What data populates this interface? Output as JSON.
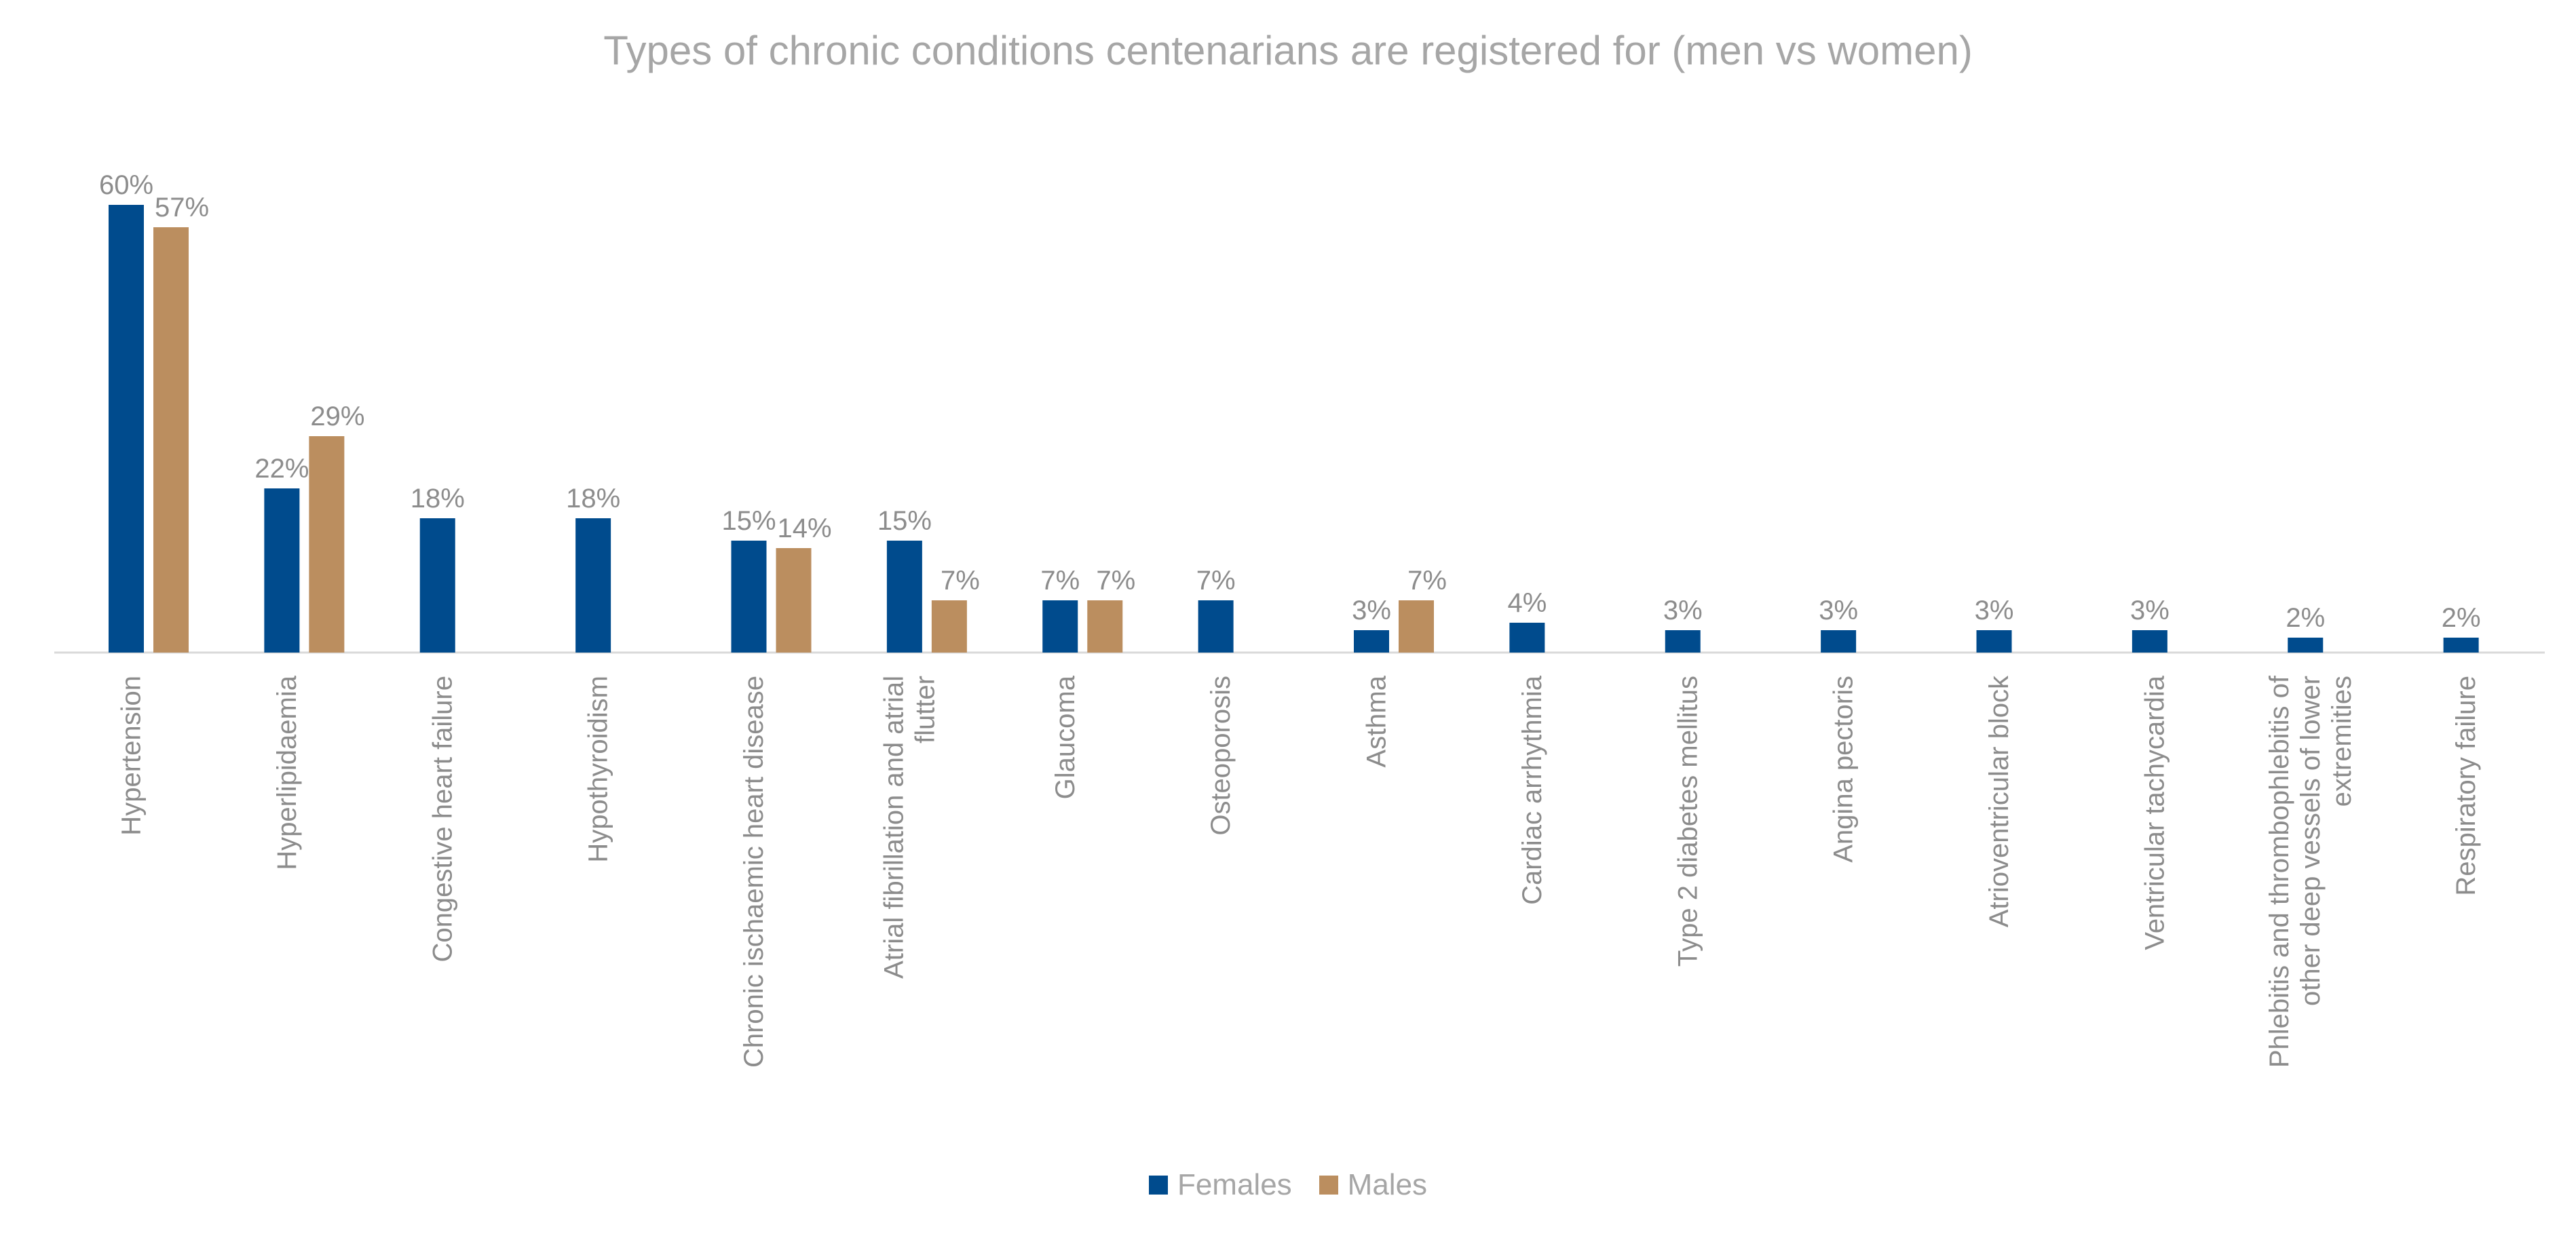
{
  "chart_data": {
    "type": "bar",
    "title": "Types of chronic conditions centenarians are registered for (men vs women)",
    "xlabel": "",
    "ylabel": "",
    "ylim": [
      0,
      65
    ],
    "grid": false,
    "legend_position": "bottom",
    "categories": [
      "Hypertension",
      "Hyperlipidaemia",
      "Congestive heart failure",
      "Hypothyroidism",
      "Chronic ischaemic heart disease",
      "Atrial fibrillation and atrial flutter",
      "Glaucoma",
      "Osteoporosis",
      "Asthma",
      "Cardiac arrhythmia",
      "Type 2 diabetes mellitus",
      "Angina pectoris",
      "Atrioventricular block",
      "Ventricular tachycardia",
      "Phlebitis and thrombophlebitis of other deep vessels of lower extremities",
      "Respiratory failure"
    ],
    "series": [
      {
        "name": "Females",
        "color": "#004b8d",
        "values": [
          60,
          22,
          18,
          18,
          15,
          15,
          7,
          7,
          3,
          4,
          3,
          3,
          3,
          3,
          2,
          2
        ],
        "labels": [
          "60%",
          "22%",
          "18%",
          "18%",
          "15%",
          "15%",
          "7%",
          "7%",
          "3%",
          "4%",
          "3%",
          "3%",
          "3%",
          "3%",
          "2%",
          "2%"
        ]
      },
      {
        "name": "Males",
        "color": "#bb8e5f",
        "values": [
          57,
          29,
          null,
          null,
          14,
          7,
          7,
          null,
          7,
          null,
          null,
          null,
          null,
          null,
          null,
          null
        ],
        "labels": [
          "57%",
          "29%",
          "",
          "",
          "14%",
          "7%",
          "7%",
          "",
          "7%",
          "",
          "",
          "",
          "",
          "",
          "",
          ""
        ]
      }
    ]
  }
}
